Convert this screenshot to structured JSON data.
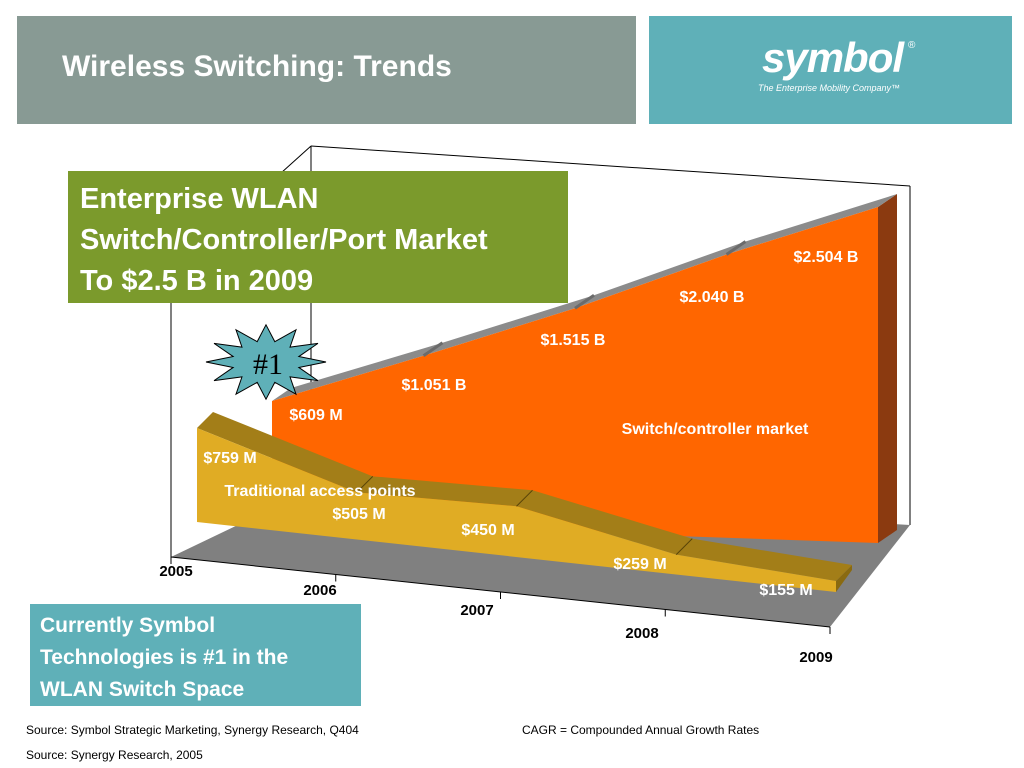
{
  "slide": {
    "title": "Wireless Switching: Trends",
    "logo_word": "symbol",
    "logo_reg": "®",
    "logo_tagline": "The Enterprise Mobility Company™"
  },
  "title_box": {
    "lines": [
      "Enterprise WLAN",
      "Switch/Controller/Port Market",
      "To $2.5 B in 2009"
    ]
  },
  "badge": {
    "label": "#1"
  },
  "note_box": {
    "lines": [
      "Currently Symbol",
      "Technologies is #1 in the",
      "WLAN Switch Space"
    ]
  },
  "footer": {
    "source_1": "Source: Symbol Strategic Marketing, Synergy Research, Q404",
    "source_2": "Source: Synergy Research, 2005",
    "cagr_note": "CAGR = Compounded Annual Growth Rates"
  },
  "colors": {
    "header_bar": "#889a94",
    "logo_bar": "#5fb0b8",
    "title_box": "#7b9a2c",
    "switch_series": "#ff6600",
    "ap_series": "#e0ac24"
  },
  "chart_data": {
    "type": "area",
    "style": "3d",
    "categories": [
      "2005",
      "2006",
      "2007",
      "2008",
      "2009"
    ],
    "ylim": [
      0,
      2.504
    ],
    "grid": false,
    "series": [
      {
        "name": "Switch/controller market",
        "values": [
          0.609,
          1.051,
          1.515,
          2.04,
          2.504
        ],
        "labels": [
          "$609 M",
          "$1.051 B",
          "$1.515 B",
          "$2.040 B",
          "$2.504 B"
        ],
        "color": "#ff6600"
      },
      {
        "name": "Traditional access points",
        "values": [
          0.759,
          0.505,
          0.45,
          0.259,
          0.155
        ],
        "labels": [
          "$759 M",
          "$505 M",
          "$450 M",
          "$259 M",
          "$155 M"
        ],
        "color": "#e0ac24"
      }
    ]
  }
}
